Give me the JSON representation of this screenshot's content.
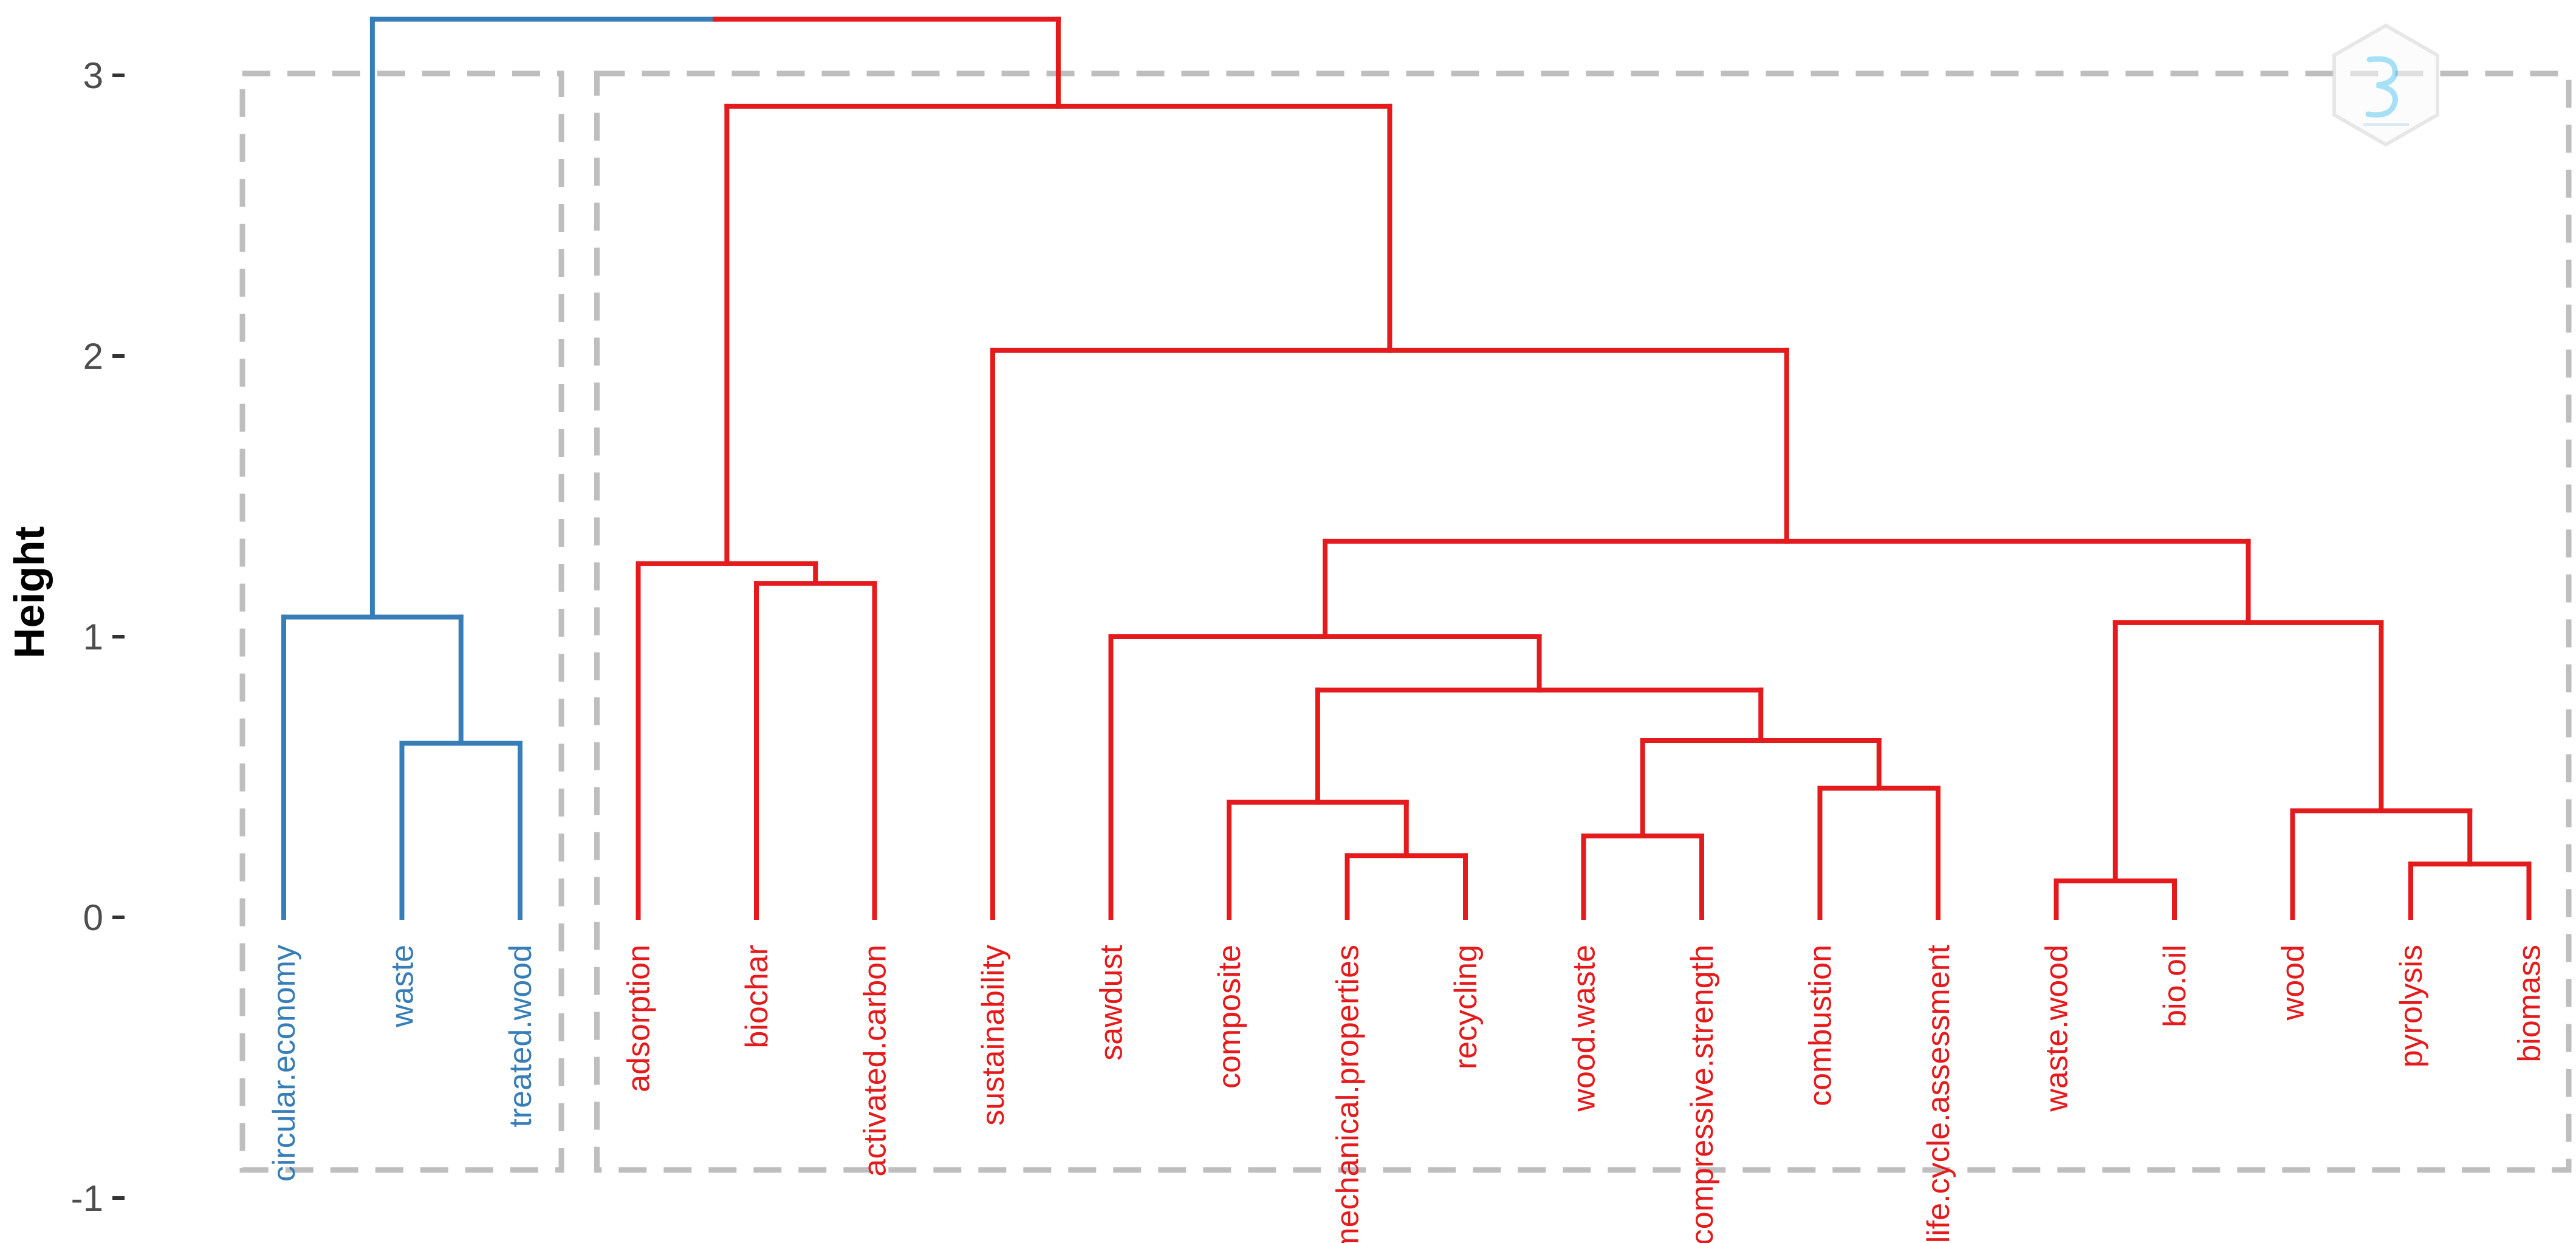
{
  "chart_data": {
    "type": "dendrogram",
    "ylabel": "Height",
    "xlabel": "",
    "ylim": [
      -1,
      3.2
    ],
    "y_ticks": [
      -1,
      0,
      1,
      2,
      3
    ],
    "colors": {
      "cluster_1": "#377eb8",
      "cluster_2": "#e41a1c",
      "box": "#bebebe"
    },
    "leaves": [
      {
        "label": "circular.economy",
        "cluster": 1
      },
      {
        "label": "waste",
        "cluster": 1
      },
      {
        "label": "treated.wood",
        "cluster": 1
      },
      {
        "label": "adsorption",
        "cluster": 2
      },
      {
        "label": "biochar",
        "cluster": 2
      },
      {
        "label": "activated.carbon",
        "cluster": 2
      },
      {
        "label": "sustainability",
        "cluster": 2
      },
      {
        "label": "sawdust",
        "cluster": 2
      },
      {
        "label": "composite",
        "cluster": 2
      },
      {
        "label": "mechanical.properties",
        "cluster": 2
      },
      {
        "label": "recycling",
        "cluster": 2
      },
      {
        "label": "wood.waste",
        "cluster": 2
      },
      {
        "label": "compressive.strength",
        "cluster": 2
      },
      {
        "label": "combustion",
        "cluster": 2
      },
      {
        "label": "life.cycle.assessment",
        "cluster": 2
      },
      {
        "label": "waste.wood",
        "cluster": 2
      },
      {
        "label": "bio.oil",
        "cluster": 2
      },
      {
        "label": "wood",
        "cluster": 2
      },
      {
        "label": "pyrolysis",
        "cluster": 2
      },
      {
        "label": "biomass",
        "cluster": 2
      }
    ],
    "merges": [
      {
        "a": "L1",
        "b": "L2",
        "height": 0.62,
        "id": "M1"
      },
      {
        "a": "L0",
        "b": "M1",
        "height": 1.07,
        "id": "M2"
      },
      {
        "a": "L4",
        "b": "L5",
        "height": 1.19,
        "id": "M3"
      },
      {
        "a": "L3",
        "b": "M3",
        "height": 1.26,
        "id": "M4"
      },
      {
        "a": "L9",
        "b": "L10",
        "height": 0.22,
        "id": "M5"
      },
      {
        "a": "L8",
        "b": "M5",
        "height": 0.41,
        "id": "M6"
      },
      {
        "a": "L11",
        "b": "L12",
        "height": 0.29,
        "id": "M7"
      },
      {
        "a": "L13",
        "b": "L14",
        "height": 0.46,
        "id": "M8"
      },
      {
        "a": "M7",
        "b": "M8",
        "height": 0.63,
        "id": "M9"
      },
      {
        "a": "M6",
        "b": "M9",
        "height": 0.81,
        "id": "M10"
      },
      {
        "a": "L7",
        "b": "M10",
        "height": 1.0,
        "id": "M11"
      },
      {
        "a": "L15",
        "b": "L16",
        "height": 0.13,
        "id": "M12"
      },
      {
        "a": "L18",
        "b": "L19",
        "height": 0.19,
        "id": "M13"
      },
      {
        "a": "L17",
        "b": "M13",
        "height": 0.38,
        "id": "M14"
      },
      {
        "a": "M12",
        "b": "M14",
        "height": 1.05,
        "id": "M15"
      },
      {
        "a": "M11",
        "b": "M15",
        "height": 1.34,
        "id": "M16"
      },
      {
        "a": "L6",
        "b": "M16",
        "height": 2.02,
        "id": "M17"
      },
      {
        "a": "M4",
        "b": "M17",
        "height": 2.89,
        "id": "M18"
      },
      {
        "a": "M2",
        "b": "M18",
        "height": 3.2,
        "id": "M19"
      }
    ],
    "cluster_boxes": [
      {
        "cluster": 1,
        "from_leaf": 0,
        "to_leaf": 2
      },
      {
        "cluster": 2,
        "from_leaf": 3,
        "to_leaf": 19
      }
    ]
  }
}
